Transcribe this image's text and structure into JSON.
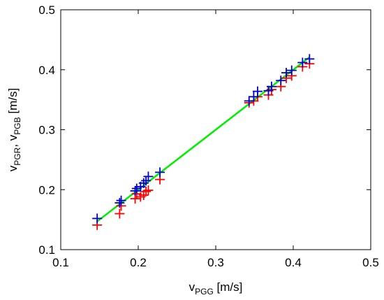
{
  "chart_data": {
    "type": "scatter",
    "xlim": [
      0.1,
      0.5
    ],
    "ylim": [
      0.1,
      0.5
    ],
    "xticks": [
      "0.1",
      "0.2",
      "0.3",
      "0.4",
      "0.5"
    ],
    "yticks": [
      "0.1",
      "0.2",
      "0.3",
      "0.4",
      "0.5"
    ],
    "xlabel": {
      "main": "v",
      "sub": "PGG",
      "unit": " [m/s]"
    },
    "ylabel": {
      "main1": "v",
      "sub1": "PGR",
      "sep": ", v",
      "sub2": "PGB",
      "unit": " [m/s]"
    },
    "grid": false,
    "series": [
      {
        "color": "#ff0000",
        "marker": "plus",
        "x": [
          0.147,
          0.176,
          0.178,
          0.196,
          0.198,
          0.203,
          0.207,
          0.21,
          0.213,
          0.228,
          0.343,
          0.349,
          0.354,
          0.368,
          0.372,
          0.384,
          0.391,
          0.398,
          0.412,
          0.421
        ],
        "y": [
          0.141,
          0.16,
          0.173,
          0.185,
          0.193,
          0.188,
          0.191,
          0.197,
          0.199,
          0.217,
          0.345,
          0.348,
          0.355,
          0.358,
          0.367,
          0.372,
          0.386,
          0.39,
          0.405,
          0.41
        ]
      },
      {
        "color": "#0000cc",
        "marker": "plus",
        "x": [
          0.147,
          0.176,
          0.178,
          0.196,
          0.198,
          0.203,
          0.207,
          0.21,
          0.213,
          0.228,
          0.343,
          0.349,
          0.354,
          0.368,
          0.372,
          0.384,
          0.391,
          0.398,
          0.412,
          0.421
        ],
        "y": [
          0.152,
          0.178,
          0.182,
          0.198,
          0.202,
          0.205,
          0.211,
          0.215,
          0.222,
          0.229,
          0.348,
          0.355,
          0.364,
          0.365,
          0.372,
          0.382,
          0.395,
          0.399,
          0.412,
          0.418
        ]
      },
      {
        "color": "#00ee00",
        "marker": "none",
        "line": true,
        "x": [
          0.147,
          0.421
        ],
        "y": [
          0.147,
          0.421
        ]
      }
    ]
  }
}
